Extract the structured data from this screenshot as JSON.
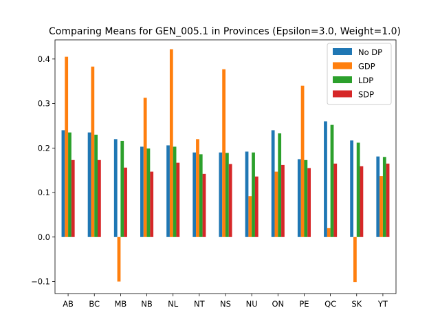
{
  "chart_data": {
    "type": "bar",
    "title": "Comparing Means for GEN_005.1 in Provinces (Epsilon=3.0, Weight=1.0)",
    "xlabel": "",
    "ylabel": "",
    "categories": [
      "AB",
      "BC",
      "MB",
      "NB",
      "NL",
      "NT",
      "NS",
      "NU",
      "ON",
      "PE",
      "QC",
      "SK",
      "YT"
    ],
    "ylim": [
      -0.127,
      0.443
    ],
    "yticks": [
      -0.1,
      0.0,
      0.1,
      0.2,
      0.3,
      0.4
    ],
    "ytick_labels": [
      "−0.1",
      "0.0",
      "0.1",
      "0.2",
      "0.3",
      "0.4"
    ],
    "legend_position": "top-right",
    "grid": false,
    "series": [
      {
        "name": "No DP",
        "color": "#1f77b4",
        "values": [
          0.24,
          0.235,
          0.22,
          0.203,
          0.206,
          0.19,
          0.19,
          0.192,
          0.24,
          0.175,
          0.26,
          0.217,
          0.181
        ]
      },
      {
        "name": "GDP",
        "color": "#ff7f0e",
        "values": [
          0.405,
          0.383,
          -0.1,
          0.313,
          0.422,
          0.22,
          0.377,
          0.092,
          0.147,
          0.34,
          0.02,
          -0.101,
          0.137
        ]
      },
      {
        "name": "LDP",
        "color": "#2ca02c",
        "values": [
          0.235,
          0.23,
          0.216,
          0.199,
          0.203,
          0.186,
          0.189,
          0.19,
          0.233,
          0.173,
          0.252,
          0.212,
          0.18
        ]
      },
      {
        "name": "SDP",
        "color": "#d62728",
        "values": [
          0.173,
          0.173,
          0.156,
          0.147,
          0.167,
          0.142,
          0.164,
          0.136,
          0.162,
          0.155,
          0.165,
          0.159,
          0.165
        ]
      }
    ]
  }
}
